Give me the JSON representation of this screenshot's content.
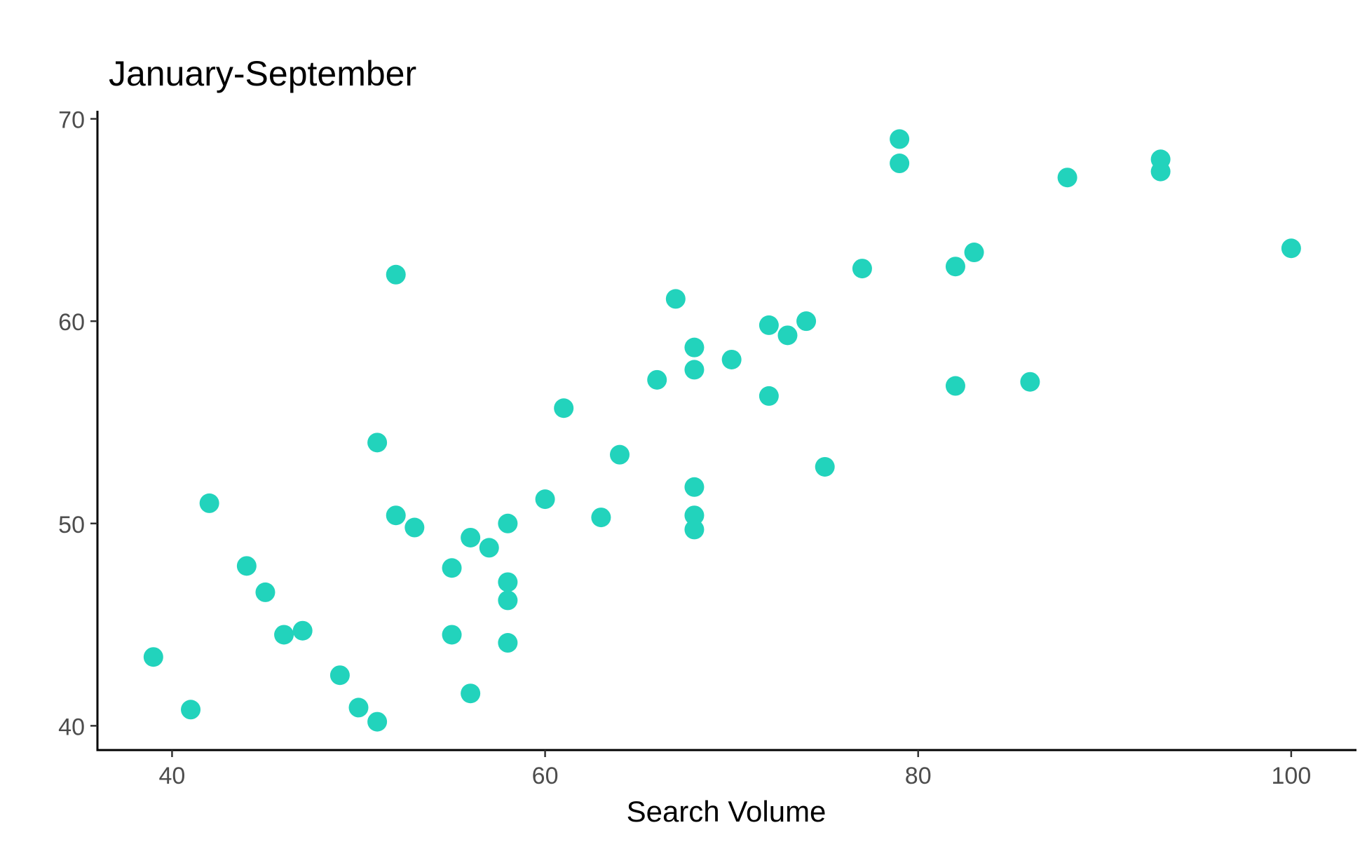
{
  "chart_data": {
    "type": "scatter",
    "title": "January-September",
    "xlabel": "Search Volume",
    "ylabel": "",
    "xlim": [
      36,
      103.5
    ],
    "ylim": [
      38.8,
      70.4
    ],
    "x_ticks": [
      40,
      60,
      80,
      100
    ],
    "y_ticks": [
      40,
      50,
      60,
      70
    ],
    "grid": false,
    "legend": "none",
    "point_color": "#22D3BC",
    "series": [
      {
        "points": [
          [
            39,
            43.4
          ],
          [
            41,
            40.8
          ],
          [
            42,
            51.0
          ],
          [
            44,
            47.9
          ],
          [
            45,
            46.6
          ],
          [
            46,
            44.5
          ],
          [
            47,
            44.7
          ],
          [
            49,
            42.5
          ],
          [
            50,
            40.9
          ],
          [
            51,
            40.2
          ],
          [
            51,
            54.0
          ],
          [
            52,
            62.3
          ],
          [
            52,
            50.4
          ],
          [
            53,
            49.8
          ],
          [
            55,
            47.8
          ],
          [
            55,
            44.5
          ],
          [
            56,
            49.3
          ],
          [
            56,
            41.6
          ],
          [
            57,
            48.8
          ],
          [
            58,
            50.0
          ],
          [
            58,
            47.1
          ],
          [
            58,
            46.2
          ],
          [
            58,
            44.1
          ],
          [
            60,
            51.2
          ],
          [
            61,
            55.7
          ],
          [
            63,
            50.3
          ],
          [
            64,
            53.4
          ],
          [
            66,
            57.1
          ],
          [
            67,
            61.1
          ],
          [
            68,
            58.7
          ],
          [
            68,
            57.6
          ],
          [
            68,
            51.8
          ],
          [
            68,
            50.4
          ],
          [
            68,
            49.7
          ],
          [
            70,
            58.1
          ],
          [
            72,
            59.8
          ],
          [
            72,
            56.3
          ],
          [
            73,
            59.3
          ],
          [
            74,
            60.0
          ],
          [
            75,
            52.8
          ],
          [
            77,
            62.6
          ],
          [
            79,
            69.0
          ],
          [
            79,
            67.8
          ],
          [
            82,
            62.7
          ],
          [
            82,
            56.8
          ],
          [
            83,
            63.4
          ],
          [
            86,
            57.0
          ],
          [
            88,
            67.1
          ],
          [
            93,
            68.0
          ],
          [
            93,
            67.4
          ],
          [
            100,
            63.6
          ]
        ]
      }
    ]
  }
}
